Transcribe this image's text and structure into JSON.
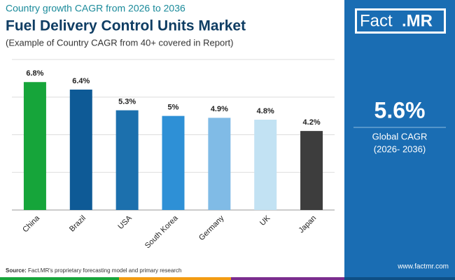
{
  "chart_data": {
    "type": "bar",
    "supertitle": "Country growth CAGR from 2026 to 2036",
    "title": "Fuel Delivery Control Units Market",
    "subtitle": "(Example of Country CAGR from 40+ covered in Report)",
    "categories": [
      "China",
      "Brazil",
      "USA",
      "South Korea",
      "Germany",
      "UK",
      "Japan"
    ],
    "values": [
      6.8,
      6.4,
      5.3,
      5,
      4.9,
      4.8,
      4.2
    ],
    "value_labels": [
      "6.8%",
      "6.4%",
      "5.3%",
      "5%",
      "4.9%",
      "4.8%",
      "4.2%"
    ],
    "colors": [
      "#16a53a",
      "#0e5a96",
      "#1c70ad",
      "#2e90d6",
      "#80bbe6",
      "#c2e2f3",
      "#3d3d3d"
    ],
    "ylim": [
      0,
      8
    ],
    "yticks": [
      0,
      2,
      4,
      6,
      8
    ],
    "grid": true
  },
  "panel": {
    "logo_main": "Fact",
    "logo_accent": ".MR",
    "value": "5.6%",
    "label": "Global CAGR",
    "period": "(2026- 2036)"
  },
  "footer": {
    "source_label": "Source:",
    "source": "Fact.MR's proprietary forecasting model and primary research",
    "url": "www.factmr.com"
  }
}
